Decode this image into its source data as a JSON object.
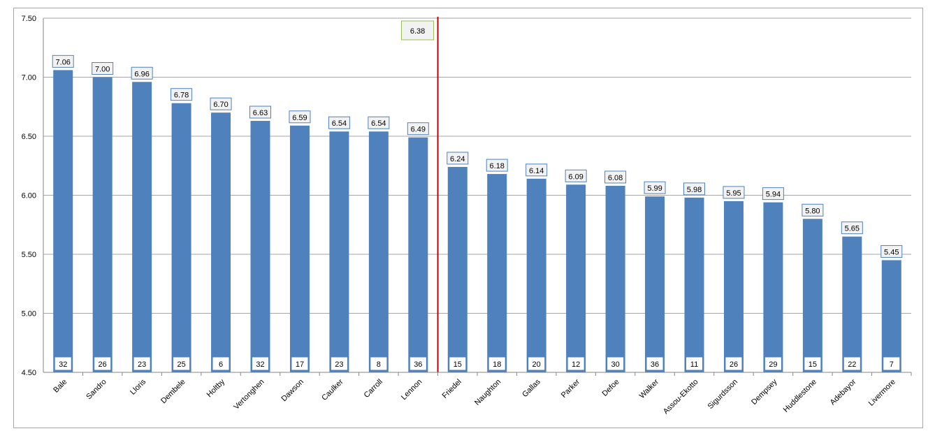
{
  "chart_data": {
    "type": "bar",
    "categories": [
      "Bale",
      "Sandro",
      "Lloris",
      "Dembele",
      "Holtby",
      "Vertonghen",
      "Dawson",
      "Caulker",
      "Carroll",
      "Lennon",
      "Friedel",
      "Naughton",
      "Gallas",
      "Parker",
      "Defoe",
      "Walker",
      "Assou-Ekotto",
      "Sigurdsson",
      "Dempsey",
      "Huddlestone",
      "Adebayor",
      "Livermore"
    ],
    "values": [
      7.06,
      7.0,
      6.96,
      6.78,
      6.7,
      6.63,
      6.59,
      6.54,
      6.54,
      6.49,
      6.24,
      6.18,
      6.14,
      6.09,
      6.08,
      5.99,
      5.98,
      5.95,
      5.94,
      5.8,
      5.65,
      5.45
    ],
    "value_labels": [
      "7.06",
      "7.00",
      "6.96",
      "6.78",
      "6.70",
      "6.63",
      "6.59",
      "6.54",
      "6.54",
      "6.49",
      "6.24",
      "6.18",
      "6.14",
      "6.09",
      "6.08",
      "5.99",
      "5.98",
      "5.95",
      "5.94",
      "5.80",
      "5.65",
      "5.45"
    ],
    "counts": [
      "32",
      "26",
      "23",
      "25",
      "6",
      "32",
      "17",
      "23",
      "8",
      "36",
      "15",
      "18",
      "20",
      "12",
      "30",
      "36",
      "11",
      "26",
      "29",
      "15",
      "22",
      "7"
    ],
    "ylim": [
      4.5,
      7.5
    ],
    "yticks": [
      "7.50",
      "7.00",
      "6.50",
      "6.00",
      "5.50",
      "5.00",
      "4.50"
    ],
    "ytick_values": [
      7.5,
      7.0,
      6.5,
      6.0,
      5.5,
      5.0,
      4.5
    ],
    "reference_line": {
      "label": "6.38",
      "after_category": "Lennon"
    },
    "grid": true,
    "title": "",
    "xlabel": "",
    "ylabel": "",
    "colors": {
      "bar": "#4f81bd",
      "reference": "#c00000",
      "grid": "#a6a6a6",
      "label_border": "#4f81bd",
      "label_bg": "#f2f2f2",
      "ref_label_border": "#9bbb59",
      "ref_label_bg": "#f2f2f2"
    }
  }
}
